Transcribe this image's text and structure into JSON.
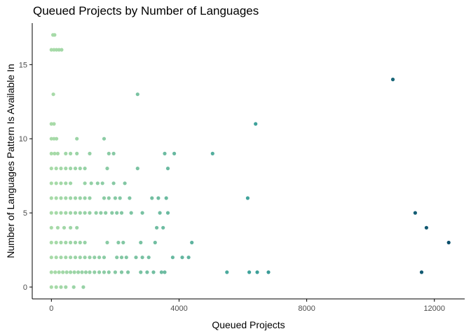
{
  "chart_data": {
    "type": "scatter",
    "title": "Queued Projects by Number of Languages",
    "xlabel": "Queued Projects",
    "ylabel": "Number of Languages Pattern Is Available In",
    "xlim": [
      -600,
      12950
    ],
    "ylim": [
      -0.8,
      17.8
    ],
    "xticks": [
      0,
      4000,
      8000,
      12000
    ],
    "yticks": [
      0,
      5,
      10,
      15
    ],
    "grid": false,
    "legend": "none",
    "color_scale": {
      "low": "#a8dba8",
      "mid": "#3fa39b",
      "high": "#0b4f6c"
    },
    "points": [
      {
        "x": 50,
        "y": 17
      },
      {
        "x": 100,
        "y": 17
      },
      {
        "x": 0,
        "y": 16
      },
      {
        "x": 80,
        "y": 16
      },
      {
        "x": 160,
        "y": 16
      },
      {
        "x": 240,
        "y": 16
      },
      {
        "x": 320,
        "y": 16
      },
      {
        "x": 10700,
        "y": 14
      },
      {
        "x": 60,
        "y": 13
      },
      {
        "x": 2700,
        "y": 13
      },
      {
        "x": 0,
        "y": 11
      },
      {
        "x": 80,
        "y": 11
      },
      {
        "x": 6400,
        "y": 11
      },
      {
        "x": 0,
        "y": 10
      },
      {
        "x": 80,
        "y": 10
      },
      {
        "x": 160,
        "y": 10
      },
      {
        "x": 800,
        "y": 10
      },
      {
        "x": 1650,
        "y": 10
      },
      {
        "x": 0,
        "y": 9
      },
      {
        "x": 100,
        "y": 9
      },
      {
        "x": 200,
        "y": 9
      },
      {
        "x": 450,
        "y": 9
      },
      {
        "x": 600,
        "y": 9
      },
      {
        "x": 800,
        "y": 9
      },
      {
        "x": 1200,
        "y": 9
      },
      {
        "x": 1800,
        "y": 9
      },
      {
        "x": 1950,
        "y": 9
      },
      {
        "x": 3550,
        "y": 9
      },
      {
        "x": 3850,
        "y": 9
      },
      {
        "x": 5050,
        "y": 9
      },
      {
        "x": 0,
        "y": 8
      },
      {
        "x": 150,
        "y": 8
      },
      {
        "x": 300,
        "y": 8
      },
      {
        "x": 450,
        "y": 8
      },
      {
        "x": 600,
        "y": 8
      },
      {
        "x": 750,
        "y": 8
      },
      {
        "x": 900,
        "y": 8
      },
      {
        "x": 1050,
        "y": 8
      },
      {
        "x": 1750,
        "y": 8
      },
      {
        "x": 2700,
        "y": 8
      },
      {
        "x": 3650,
        "y": 8
      },
      {
        "x": 0,
        "y": 7
      },
      {
        "x": 150,
        "y": 7
      },
      {
        "x": 300,
        "y": 7
      },
      {
        "x": 450,
        "y": 7
      },
      {
        "x": 600,
        "y": 7
      },
      {
        "x": 1050,
        "y": 7
      },
      {
        "x": 1250,
        "y": 7
      },
      {
        "x": 1450,
        "y": 7
      },
      {
        "x": 1600,
        "y": 7
      },
      {
        "x": 1950,
        "y": 7
      },
      {
        "x": 2300,
        "y": 7
      },
      {
        "x": 0,
        "y": 6
      },
      {
        "x": 150,
        "y": 6
      },
      {
        "x": 300,
        "y": 6
      },
      {
        "x": 450,
        "y": 6
      },
      {
        "x": 600,
        "y": 6
      },
      {
        "x": 750,
        "y": 6
      },
      {
        "x": 900,
        "y": 6
      },
      {
        "x": 1050,
        "y": 6
      },
      {
        "x": 1200,
        "y": 6
      },
      {
        "x": 1650,
        "y": 6
      },
      {
        "x": 1800,
        "y": 6
      },
      {
        "x": 2000,
        "y": 6
      },
      {
        "x": 2150,
        "y": 6
      },
      {
        "x": 2450,
        "y": 6
      },
      {
        "x": 3150,
        "y": 6
      },
      {
        "x": 3350,
        "y": 6
      },
      {
        "x": 3600,
        "y": 6
      },
      {
        "x": 6150,
        "y": 6
      },
      {
        "x": 0,
        "y": 5
      },
      {
        "x": 150,
        "y": 5
      },
      {
        "x": 300,
        "y": 5
      },
      {
        "x": 450,
        "y": 5
      },
      {
        "x": 600,
        "y": 5
      },
      {
        "x": 750,
        "y": 5
      },
      {
        "x": 900,
        "y": 5
      },
      {
        "x": 1050,
        "y": 5
      },
      {
        "x": 1200,
        "y": 5
      },
      {
        "x": 1400,
        "y": 5
      },
      {
        "x": 1550,
        "y": 5
      },
      {
        "x": 1700,
        "y": 5
      },
      {
        "x": 1900,
        "y": 5
      },
      {
        "x": 2050,
        "y": 5
      },
      {
        "x": 2200,
        "y": 5
      },
      {
        "x": 2500,
        "y": 5
      },
      {
        "x": 2850,
        "y": 5
      },
      {
        "x": 3400,
        "y": 5
      },
      {
        "x": 3650,
        "y": 5
      },
      {
        "x": 11400,
        "y": 5
      },
      {
        "x": 0,
        "y": 4
      },
      {
        "x": 200,
        "y": 4
      },
      {
        "x": 400,
        "y": 4
      },
      {
        "x": 600,
        "y": 4
      },
      {
        "x": 800,
        "y": 4
      },
      {
        "x": 3300,
        "y": 4
      },
      {
        "x": 3500,
        "y": 4
      },
      {
        "x": 11750,
        "y": 4
      },
      {
        "x": 0,
        "y": 3
      },
      {
        "x": 150,
        "y": 3
      },
      {
        "x": 300,
        "y": 3
      },
      {
        "x": 450,
        "y": 3
      },
      {
        "x": 600,
        "y": 3
      },
      {
        "x": 750,
        "y": 3
      },
      {
        "x": 900,
        "y": 3
      },
      {
        "x": 1050,
        "y": 3
      },
      {
        "x": 1750,
        "y": 3
      },
      {
        "x": 2100,
        "y": 3
      },
      {
        "x": 2250,
        "y": 3
      },
      {
        "x": 2800,
        "y": 3
      },
      {
        "x": 3250,
        "y": 3
      },
      {
        "x": 4400,
        "y": 3
      },
      {
        "x": 12450,
        "y": 3
      },
      {
        "x": 0,
        "y": 2
      },
      {
        "x": 150,
        "y": 2
      },
      {
        "x": 300,
        "y": 2
      },
      {
        "x": 450,
        "y": 2
      },
      {
        "x": 600,
        "y": 2
      },
      {
        "x": 750,
        "y": 2
      },
      {
        "x": 900,
        "y": 2
      },
      {
        "x": 1050,
        "y": 2
      },
      {
        "x": 1200,
        "y": 2
      },
      {
        "x": 1350,
        "y": 2
      },
      {
        "x": 1500,
        "y": 2
      },
      {
        "x": 1650,
        "y": 2
      },
      {
        "x": 2050,
        "y": 2
      },
      {
        "x": 2200,
        "y": 2
      },
      {
        "x": 2350,
        "y": 2
      },
      {
        "x": 2650,
        "y": 2
      },
      {
        "x": 2850,
        "y": 2
      },
      {
        "x": 3050,
        "y": 2
      },
      {
        "x": 3800,
        "y": 2
      },
      {
        "x": 4100,
        "y": 2
      },
      {
        "x": 4300,
        "y": 2
      },
      {
        "x": 0,
        "y": 1
      },
      {
        "x": 120,
        "y": 1
      },
      {
        "x": 240,
        "y": 1
      },
      {
        "x": 360,
        "y": 1
      },
      {
        "x": 480,
        "y": 1
      },
      {
        "x": 600,
        "y": 1
      },
      {
        "x": 720,
        "y": 1
      },
      {
        "x": 840,
        "y": 1
      },
      {
        "x": 960,
        "y": 1
      },
      {
        "x": 1080,
        "y": 1
      },
      {
        "x": 1200,
        "y": 1
      },
      {
        "x": 1350,
        "y": 1
      },
      {
        "x": 1500,
        "y": 1
      },
      {
        "x": 1650,
        "y": 1
      },
      {
        "x": 1800,
        "y": 1
      },
      {
        "x": 2000,
        "y": 1
      },
      {
        "x": 2200,
        "y": 1
      },
      {
        "x": 2400,
        "y": 1
      },
      {
        "x": 2800,
        "y": 1
      },
      {
        "x": 3000,
        "y": 1
      },
      {
        "x": 3200,
        "y": 1
      },
      {
        "x": 3450,
        "y": 1
      },
      {
        "x": 3550,
        "y": 1
      },
      {
        "x": 5500,
        "y": 1
      },
      {
        "x": 6200,
        "y": 1
      },
      {
        "x": 6450,
        "y": 1
      },
      {
        "x": 6800,
        "y": 1
      },
      {
        "x": 11600,
        "y": 1
      },
      {
        "x": 0,
        "y": 0
      },
      {
        "x": 150,
        "y": 0
      },
      {
        "x": 300,
        "y": 0
      },
      {
        "x": 450,
        "y": 0
      },
      {
        "x": 700,
        "y": 0
      },
      {
        "x": 1000,
        "y": 0
      }
    ]
  }
}
